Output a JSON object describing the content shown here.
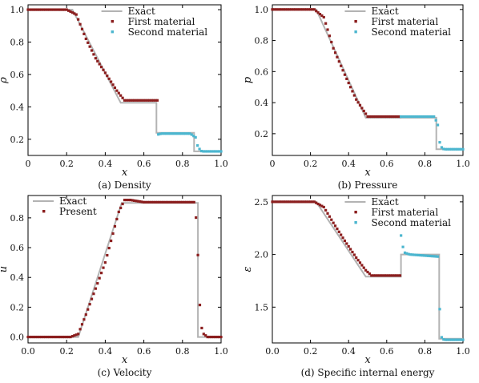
{
  "colors": {
    "exact": "#b3b3b3",
    "first": "#8b1e1e",
    "second": "#4cb6cf",
    "present": "#8b1e1e",
    "frame": "#000000"
  },
  "chart_data": [
    {
      "type": "line+scatter",
      "caption": "(a) Density",
      "xlabel": "x",
      "ylabel": "ρ",
      "xlim": [
        0,
        1.0
      ],
      "ylim": [
        0.1,
        1.03
      ],
      "xticks": [
        0,
        0.2,
        0.4,
        0.6,
        0.8,
        1.0
      ],
      "xtick_labels": [
        "0",
        "0.2",
        "0.4",
        "0.6",
        "0.8",
        "1.0"
      ],
      "yticks": [
        0.2,
        0.4,
        0.6,
        0.8,
        1.0
      ],
      "ytick_labels": [
        "0.2",
        "0.4",
        "0.6",
        "0.8",
        "1.0"
      ],
      "legend_position": "top-right",
      "exact": {
        "name": "Exact",
        "x": [
          0,
          0.23,
          0.48,
          0.665,
          0.665,
          0.86,
          0.86,
          1.0
        ],
        "y": [
          1.0,
          1.0,
          0.425,
          0.425,
          0.24,
          0.24,
          0.125,
          0.125
        ]
      },
      "series": [
        {
          "name": "First material",
          "kind": "first",
          "x_range": [
            0.0,
            0.67
          ],
          "count": 68,
          "profile": [
            [
              0,
              1.0
            ],
            [
              0.2,
              1.0
            ],
            [
              0.25,
              0.97
            ],
            [
              0.3,
              0.82
            ],
            [
              0.35,
              0.7
            ],
            [
              0.4,
              0.61
            ],
            [
              0.46,
              0.5
            ],
            [
              0.5,
              0.44
            ],
            [
              0.67,
              0.44
            ]
          ]
        },
        {
          "name": "Second material",
          "kind": "second",
          "x_range": [
            0.675,
            1.0
          ],
          "count": 33,
          "profile": [
            [
              0.675,
              0.23
            ],
            [
              0.69,
              0.235
            ],
            [
              0.84,
              0.235
            ],
            [
              0.87,
              0.21
            ],
            [
              0.88,
              0.15
            ],
            [
              0.9,
              0.125
            ],
            [
              1.0,
              0.125
            ]
          ]
        }
      ]
    },
    {
      "type": "line+scatter",
      "caption": "(b) Pressure",
      "xlabel": "x",
      "ylabel": "p",
      "xlim": [
        0,
        1.0
      ],
      "ylim": [
        0.06,
        1.03
      ],
      "xticks": [
        0,
        0.2,
        0.4,
        0.6,
        0.8,
        1.0
      ],
      "xtick_labels": [
        "0",
        "0.2",
        "0.4",
        "0.6",
        "0.8",
        "1.0"
      ],
      "yticks": [
        0.2,
        0.4,
        0.6,
        0.8,
        1.0
      ],
      "ytick_labels": [
        "0.2",
        "0.4",
        "0.6",
        "0.8",
        "1.0"
      ],
      "legend_position": "top-right",
      "exact": {
        "name": "Exact",
        "x": [
          0,
          0.23,
          0.49,
          0.86,
          0.86,
          1.0
        ],
        "y": [
          1.0,
          1.0,
          0.303,
          0.303,
          0.1,
          0.1
        ]
      },
      "series": [
        {
          "name": "First material",
          "kind": "first",
          "x_range": [
            0.0,
            0.67
          ],
          "count": 68,
          "profile": [
            [
              0,
              1.0
            ],
            [
              0.22,
              1.0
            ],
            [
              0.27,
              0.95
            ],
            [
              0.32,
              0.75
            ],
            [
              0.38,
              0.58
            ],
            [
              0.44,
              0.42
            ],
            [
              0.5,
              0.31
            ],
            [
              0.67,
              0.31
            ]
          ]
        },
        {
          "name": "Second material",
          "kind": "second",
          "x_range": [
            0.675,
            1.0
          ],
          "count": 33,
          "profile": [
            [
              0.675,
              0.31
            ],
            [
              0.85,
              0.31
            ],
            [
              0.87,
              0.25
            ],
            [
              0.88,
              0.12
            ],
            [
              0.9,
              0.1
            ],
            [
              1.0,
              0.1
            ]
          ]
        }
      ]
    },
    {
      "type": "line+scatter",
      "caption": "(c) Velocity",
      "xlabel": "x",
      "ylabel": "u",
      "xlim": [
        0,
        1.0
      ],
      "ylim": [
        -0.04,
        0.95
      ],
      "xticks": [
        0,
        0.2,
        0.4,
        0.6,
        0.8,
        1.0
      ],
      "xtick_labels": [
        "0.0",
        "0.2",
        "0.4",
        "0.6",
        "0.8",
        "1.0"
      ],
      "yticks": [
        0,
        0.2,
        0.4,
        0.6,
        0.8
      ],
      "ytick_labels": [
        "0.0",
        "0.2",
        "0.4",
        "0.6",
        "0.8"
      ],
      "legend_position": "top-left",
      "exact": {
        "name": "Exact",
        "x": [
          0,
          0.26,
          0.485,
          0.88,
          0.88,
          1.0
        ],
        "y": [
          0.0,
          0.0,
          0.9,
          0.9,
          0.0,
          0.0
        ]
      },
      "series": [
        {
          "name": "Present",
          "kind": "present",
          "x_range": [
            0.0,
            1.0
          ],
          "count": 101,
          "profile": [
            [
              0,
              0.0
            ],
            [
              0.22,
              0.0
            ],
            [
              0.26,
              0.02
            ],
            [
              0.3,
              0.15
            ],
            [
              0.4,
              0.5
            ],
            [
              0.47,
              0.84
            ],
            [
              0.5,
              0.92
            ],
            [
              0.53,
              0.92
            ],
            [
              0.6,
              0.905
            ],
            [
              0.86,
              0.905
            ],
            [
              0.875,
              0.75
            ],
            [
              0.885,
              0.35
            ],
            [
              0.895,
              0.08
            ],
            [
              0.91,
              0.02
            ],
            [
              0.93,
              0.0
            ],
            [
              1.0,
              0.0
            ]
          ]
        }
      ]
    },
    {
      "type": "line+scatter",
      "caption": "(d) Specific internal energy",
      "xlabel": "x",
      "ylabel": "ε",
      "xlim": [
        0,
        1.0
      ],
      "ylim": [
        1.16,
        2.56
      ],
      "xticks": [
        0,
        0.2,
        0.4,
        0.6,
        0.8,
        1.0
      ],
      "xtick_labels": [
        "0.0",
        "0.2",
        "0.4",
        "0.6",
        "0.8",
        "1.0"
      ],
      "yticks": [
        1.5,
        2.0,
        2.5
      ],
      "ytick_labels": [
        "1.5",
        "2.0",
        "2.5"
      ],
      "legend_position": "top-right",
      "exact": {
        "name": "Exact",
        "x": [
          0,
          0.23,
          0.49,
          0.675,
          0.675,
          0.875,
          0.875,
          1.0
        ],
        "y": [
          2.5,
          2.5,
          1.79,
          1.79,
          2.0,
          2.0,
          1.2,
          1.2
        ]
      },
      "series": [
        {
          "name": "First material",
          "kind": "first",
          "x_range": [
            0.0,
            0.67
          ],
          "count": 68,
          "profile": [
            [
              0,
              2.5
            ],
            [
              0.22,
              2.5
            ],
            [
              0.27,
              2.45
            ],
            [
              0.32,
              2.3
            ],
            [
              0.38,
              2.13
            ],
            [
              0.44,
              1.97
            ],
            [
              0.49,
              1.85
            ],
            [
              0.52,
              1.8
            ],
            [
              0.67,
              1.8
            ]
          ]
        },
        {
          "name": "Second material",
          "kind": "second",
          "x_range": [
            0.675,
            1.0
          ],
          "count": 33,
          "profile": [
            [
              0.675,
              2.18
            ],
            [
              0.69,
              2.02
            ],
            [
              0.72,
              2.0
            ],
            [
              0.87,
              1.98
            ],
            [
              0.875,
              1.7
            ],
            [
              0.88,
              1.35
            ],
            [
              0.885,
              1.22
            ],
            [
              0.9,
              1.19
            ],
            [
              1.0,
              1.19
            ]
          ]
        }
      ]
    }
  ]
}
